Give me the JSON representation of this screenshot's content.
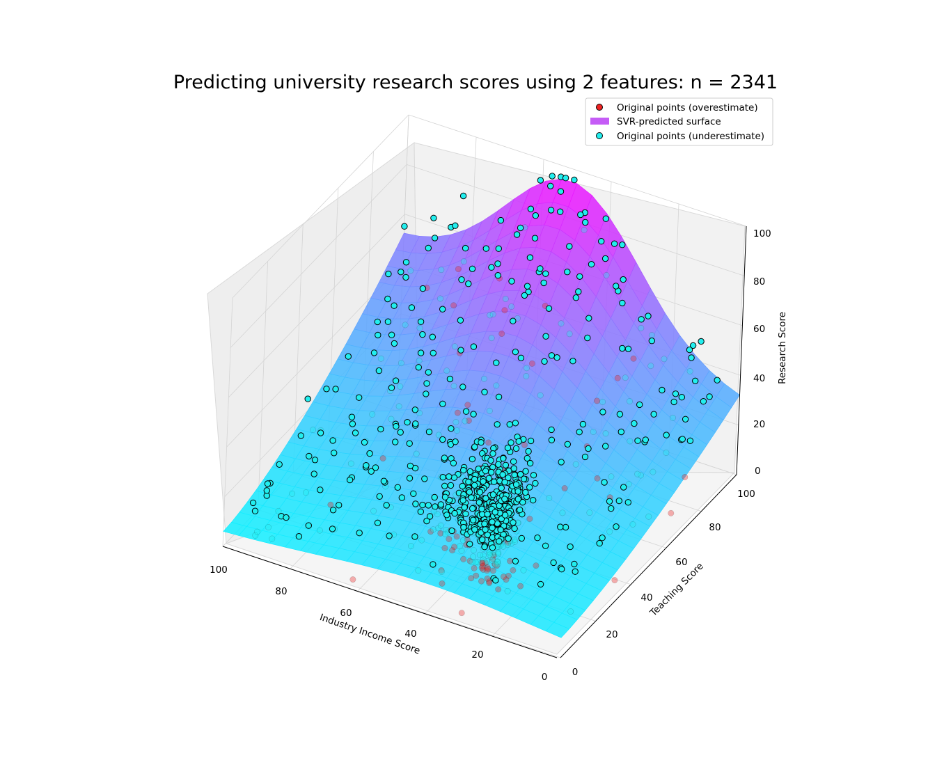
{
  "chart_data": {
    "type": "scatter3d_surface",
    "title": "Predicting university research scores using 2 features: n = 2341",
    "xlabel": "Industry Income Score",
    "ylabel": "Teaching Score",
    "zlabel": "Research Score",
    "xlim": [
      0,
      100
    ],
    "ylim": [
      0,
      100
    ],
    "zlim": [
      0,
      100
    ],
    "x_ticks": [
      "100",
      "80",
      "60",
      "40",
      "20",
      "0"
    ],
    "y_ticks": [
      "0",
      "20",
      "40",
      "60",
      "80",
      "100"
    ],
    "z_ticks": [
      "0",
      "20",
      "40",
      "60",
      "80",
      "100"
    ],
    "surface": {
      "name": "SVR-predicted surface",
      "colormap": "cool",
      "description_values": {
        "low_teaching_max": 12,
        "high_teaching_low_income": 30,
        "high_teaching_mid_income": 95,
        "high_teaching_high_income": 50
      }
    },
    "series": [
      {
        "name": "Original points (overestimate)",
        "color": "#ee2222"
      },
      {
        "name": "SVR-predicted surface",
        "color": "#c55cf6"
      },
      {
        "name": "Original points (underestimate)",
        "color": "#22eeee"
      }
    ],
    "legend_position": "top-right",
    "n": 2341
  }
}
